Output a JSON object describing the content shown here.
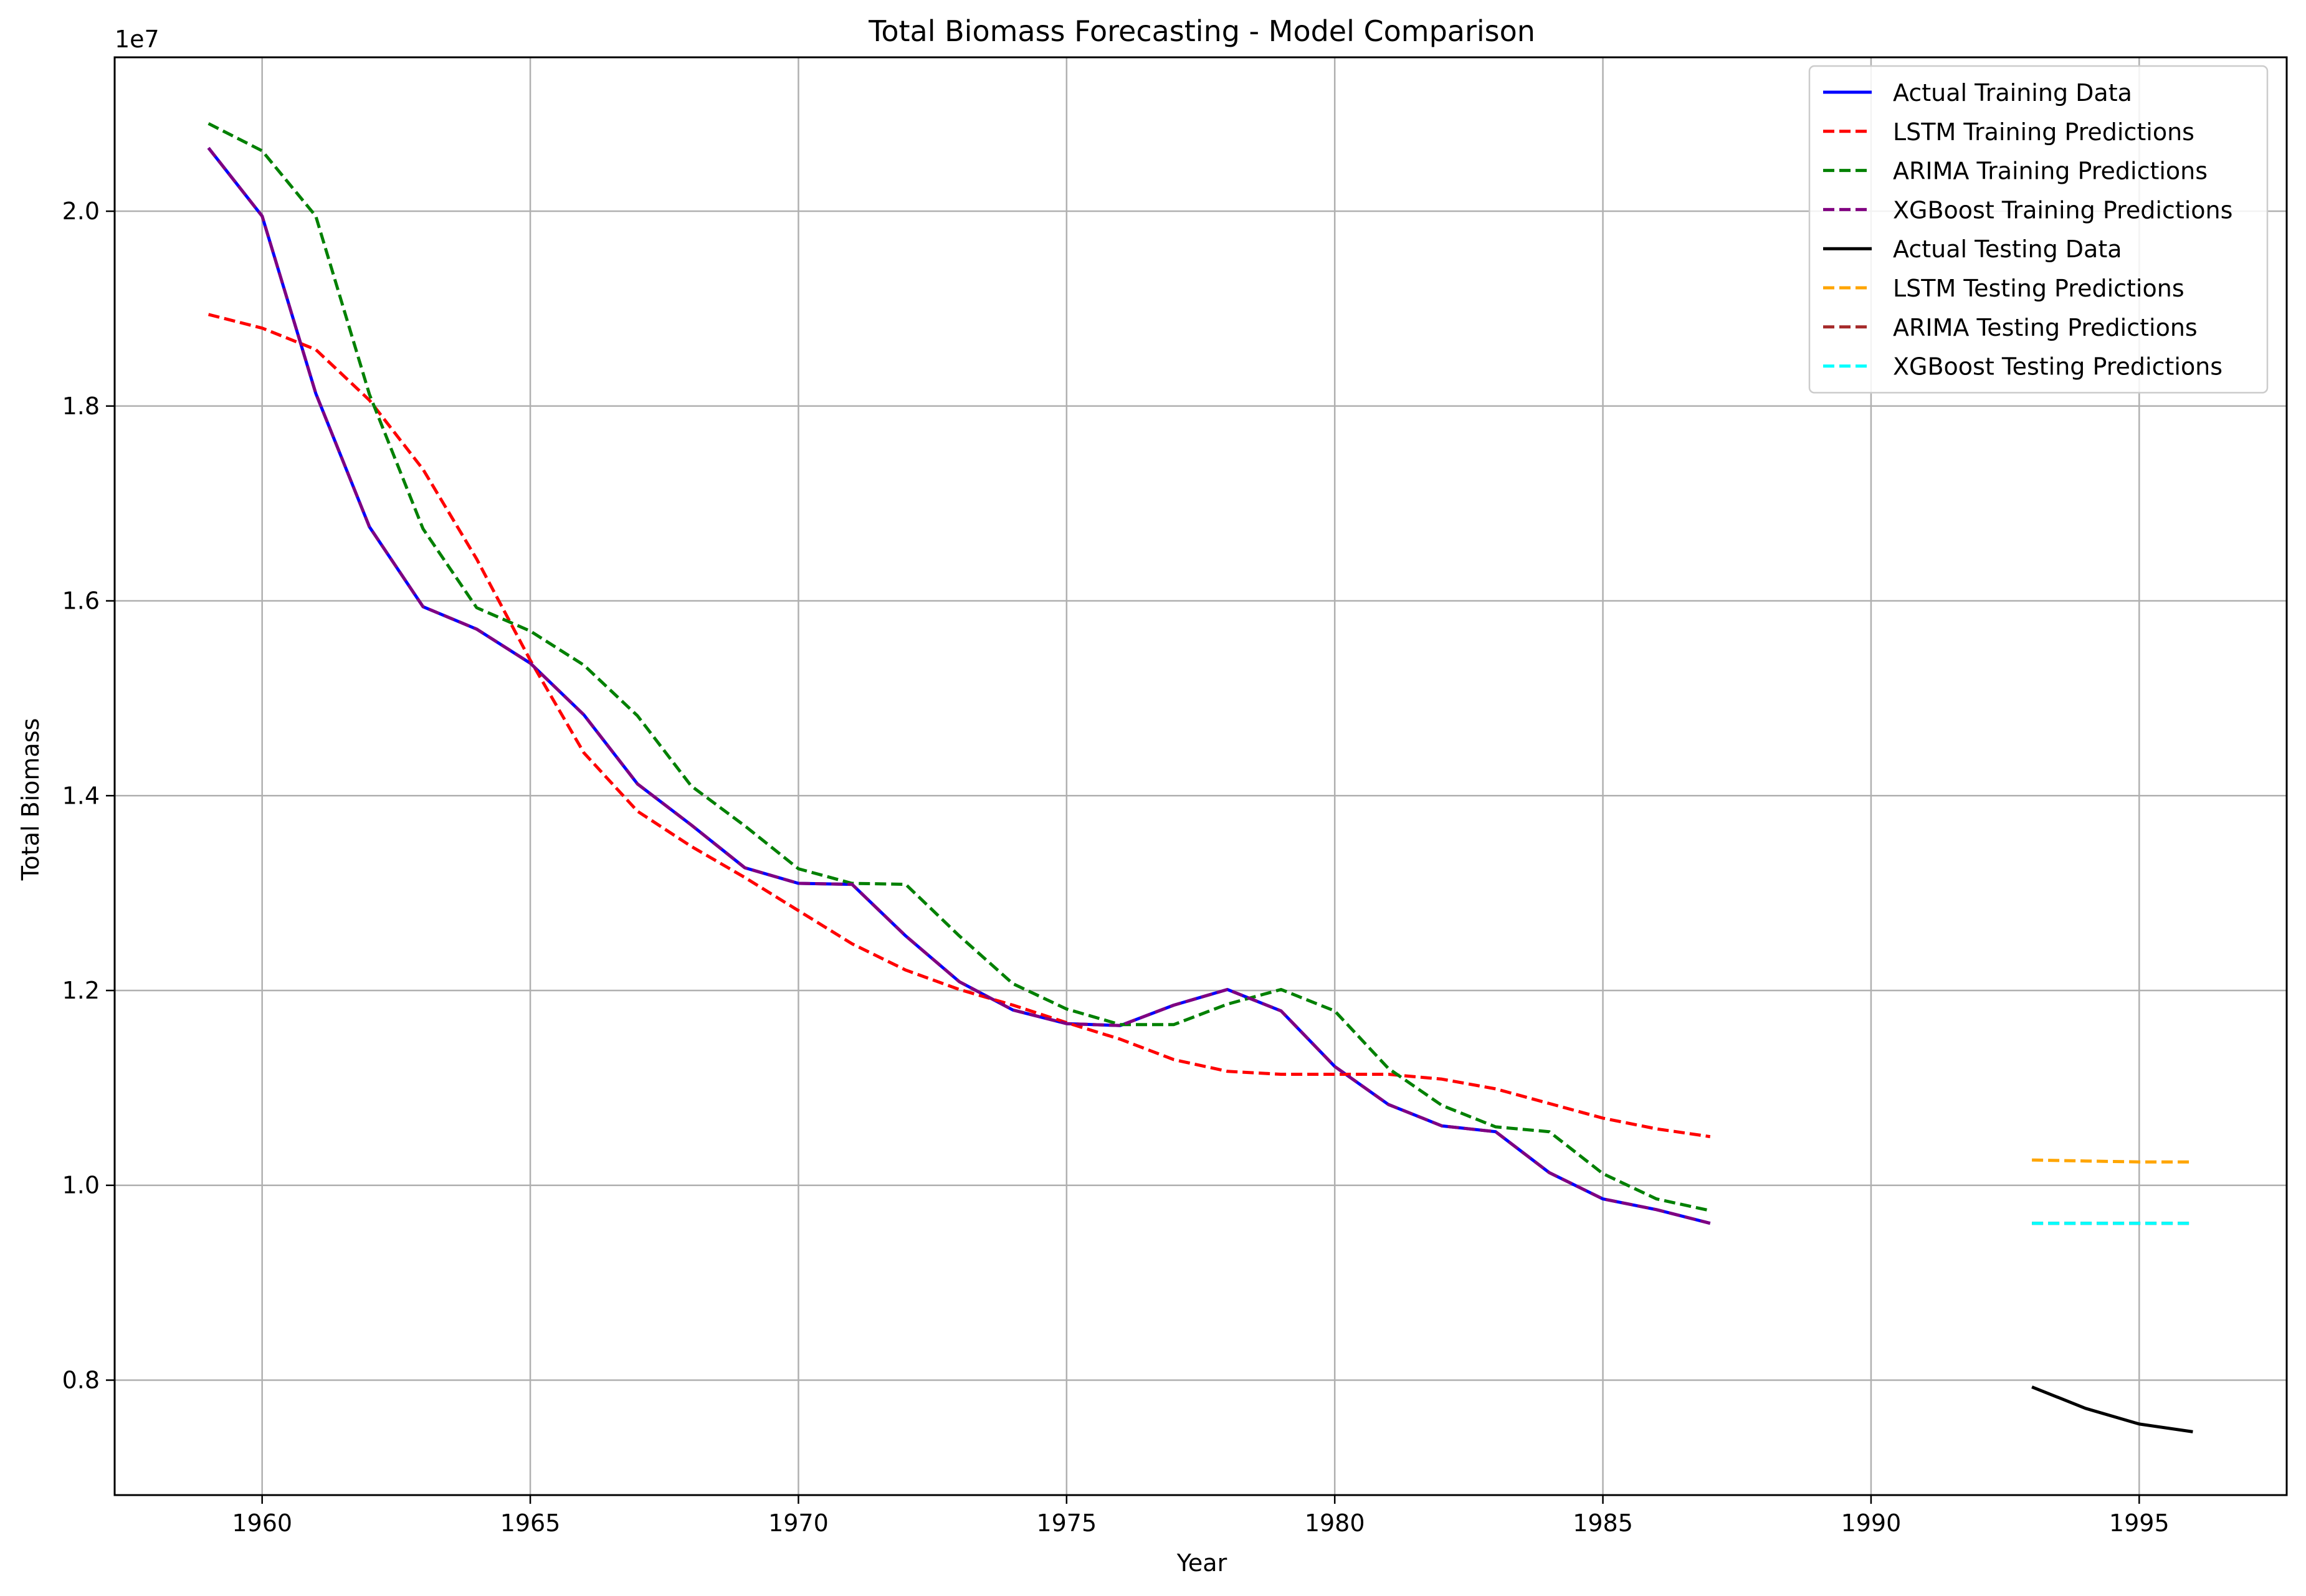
{
  "chart_data": {
    "type": "line",
    "title": "Total Biomass Forecasting - Model Comparison",
    "xlabel": "Year",
    "ylabel": "Total Biomass",
    "y_scale_label": "1e7",
    "xlim": [
      1957.25,
      1997.75
    ],
    "ylim": [
      6.82,
      21.58
    ],
    "y_multiplier": 1000000,
    "xticks": [
      1960,
      1965,
      1970,
      1975,
      1980,
      1985,
      1990,
      1995
    ],
    "yticks": [
      8,
      10,
      12,
      14,
      16,
      18,
      20
    ],
    "ytick_labels": [
      "0.8",
      "1.0",
      "1.2",
      "1.4",
      "1.6",
      "1.8",
      "2.0"
    ],
    "grid": true,
    "legend_position": "top-right",
    "series": [
      {
        "name": "Actual Training Data",
        "color": "#0000ff",
        "dash": "solid",
        "x": [
          1959,
          1960,
          1961,
          1962,
          1963,
          1964,
          1965,
          1966,
          1967,
          1968,
          1969,
          1970,
          1971,
          1972,
          1973,
          1974,
          1975,
          1976,
          1977,
          1978,
          1979,
          1980,
          1981,
          1982,
          1983,
          1984,
          1985,
          1986,
          1987
        ],
        "y": [
          20.65,
          19.95,
          18.13,
          16.76,
          15.94,
          15.71,
          15.36,
          14.83,
          14.12,
          13.7,
          13.26,
          13.1,
          13.09,
          12.56,
          12.09,
          11.8,
          11.66,
          11.64,
          11.85,
          12.01,
          11.79,
          11.22,
          10.83,
          10.61,
          10.55,
          10.13,
          9.86,
          9.75,
          9.61
        ]
      },
      {
        "name": "LSTM Training Predictions",
        "color": "#ff0000",
        "dash": "dashed",
        "x": [
          1959,
          1960,
          1961,
          1962,
          1963,
          1964,
          1965,
          1966,
          1967,
          1968,
          1969,
          1970,
          1971,
          1972,
          1973,
          1974,
          1975,
          1976,
          1977,
          1978,
          1979,
          1980,
          1981,
          1982,
          1983,
          1984,
          1985,
          1986,
          1987
        ],
        "y": [
          18.94,
          18.8,
          18.58,
          18.06,
          17.35,
          16.43,
          15.39,
          14.44,
          13.84,
          13.48,
          13.16,
          12.82,
          12.48,
          12.21,
          12.01,
          11.85,
          11.67,
          11.5,
          11.29,
          11.17,
          11.14,
          11.14,
          11.14,
          11.09,
          10.99,
          10.84,
          10.69,
          10.58,
          10.5
        ]
      },
      {
        "name": "ARIMA Training Predictions",
        "color": "#008000",
        "dash": "dashed",
        "x": [
          1959,
          1960,
          1961,
          1962,
          1963,
          1964,
          1965,
          1966,
          1967,
          1968,
          1969,
          1970,
          1971,
          1972,
          1973,
          1974,
          1975,
          1976,
          1977,
          1978,
          1979,
          1980,
          1981,
          1982,
          1983,
          1984,
          1985,
          1986,
          1987
        ],
        "y": [
          20.9,
          20.62,
          19.95,
          18.12,
          16.74,
          15.93,
          15.69,
          15.34,
          14.82,
          14.1,
          13.69,
          13.25,
          13.1,
          13.09,
          12.56,
          12.07,
          11.81,
          11.65,
          11.65,
          11.86,
          12.01,
          11.79,
          11.2,
          10.82,
          10.6,
          10.55,
          10.12,
          9.86,
          9.74
        ]
      },
      {
        "name": "XGBoost Training Predictions",
        "color": "#800080",
        "dash": "dashed",
        "x": [
          1959,
          1960,
          1961,
          1962,
          1963,
          1964,
          1965,
          1966,
          1967,
          1968,
          1969,
          1970,
          1971,
          1972,
          1973,
          1974,
          1975,
          1976,
          1977,
          1978,
          1979,
          1980,
          1981,
          1982,
          1983,
          1984,
          1985,
          1986,
          1987
        ],
        "y": [
          20.65,
          19.95,
          18.13,
          16.76,
          15.94,
          15.71,
          15.36,
          14.83,
          14.12,
          13.7,
          13.26,
          13.1,
          13.09,
          12.56,
          12.09,
          11.8,
          11.66,
          11.64,
          11.85,
          12.01,
          11.79,
          11.22,
          10.83,
          10.61,
          10.55,
          10.13,
          9.86,
          9.75,
          9.61
        ]
      },
      {
        "name": "Actual Testing Data",
        "color": "#000000",
        "dash": "solid",
        "x": [
          1993,
          1994,
          1995,
          1996
        ],
        "y": [
          7.93,
          7.71,
          7.55,
          7.47
        ]
      },
      {
        "name": "LSTM Testing Predictions",
        "color": "#ffa500",
        "dash": "dashed",
        "x": [
          1993,
          1994,
          1995,
          1996
        ],
        "y": [
          10.26,
          10.25,
          10.24,
          10.24
        ]
      },
      {
        "name": "ARIMA Testing Predictions",
        "color": "#a52a2a",
        "dash": "dashed",
        "x": [
          1993,
          1994,
          1995,
          1996
        ],
        "y": [
          9.61,
          9.61,
          9.61,
          9.61
        ]
      },
      {
        "name": "XGBoost Testing Predictions",
        "color": "#00ffff",
        "dash": "dashed",
        "x": [
          1993,
          1994,
          1995,
          1996
        ],
        "y": [
          9.61,
          9.61,
          9.61,
          9.61
        ]
      }
    ]
  }
}
